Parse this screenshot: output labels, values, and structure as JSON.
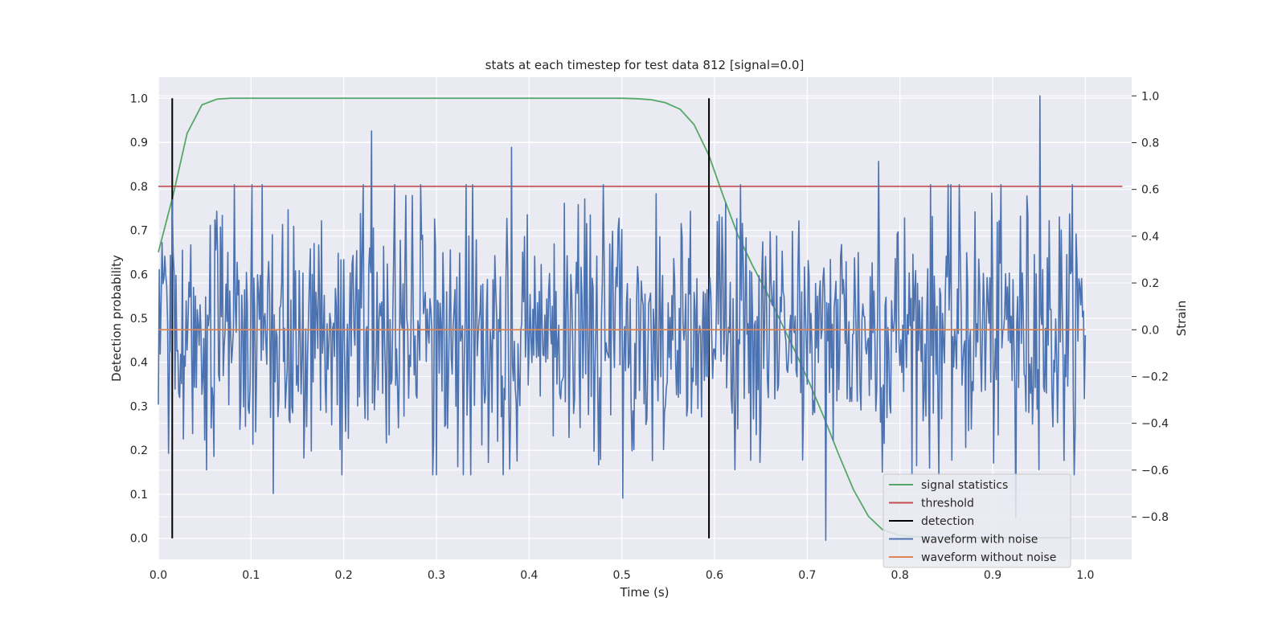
{
  "chart_data": {
    "type": "line",
    "title": "stats at each timestep for test data 812 [signal=0.0]",
    "xlabel": "Time (s)",
    "ylabel": "Detection probability",
    "ylabel_right": "Strain",
    "xlim": [
      0.0,
      1.05
    ],
    "ylim": [
      -0.048,
      1.048
    ],
    "ylim_right": [
      -0.982,
      1.08
    ],
    "x_ticks": [
      "0.0",
      "0.1",
      "0.2",
      "0.3",
      "0.4",
      "0.5",
      "0.6",
      "0.7",
      "0.8",
      "0.9",
      "1.0"
    ],
    "y_ticks": [
      "0.0",
      "0.1",
      "0.2",
      "0.3",
      "0.4",
      "0.5",
      "0.6",
      "0.7",
      "0.8",
      "0.9",
      "1.0"
    ],
    "y_ticks_right": [
      "−0.8",
      "−0.6",
      "−0.4",
      "−0.2",
      "0.0",
      "0.2",
      "0.4",
      "0.6",
      "0.8",
      "1.0"
    ],
    "grid": true,
    "legend_position": "lower-right",
    "series": [
      {
        "name": "signal statistics",
        "axis": "left",
        "color": "#55a868",
        "x": [
          0.0,
          0.016,
          0.031,
          0.047,
          0.063,
          0.078,
          0.1,
          0.2,
          0.3,
          0.4,
          0.5,
          0.516,
          0.531,
          0.547,
          0.563,
          0.578,
          0.594,
          0.609,
          0.625,
          0.641,
          0.656,
          0.672,
          0.688,
          0.703,
          0.719,
          0.734,
          0.75,
          0.766,
          0.781,
          0.797,
          0.813,
          0.828,
          0.844,
          0.859,
          0.875,
          0.891,
          0.906,
          0.922,
          0.938,
          0.953,
          0.969,
          0.984
        ],
        "y": [
          0.65,
          0.78,
          0.92,
          0.985,
          0.998,
          1.0,
          1.0,
          1.0,
          1.0,
          1.0,
          1.0,
          0.999,
          0.997,
          0.99,
          0.975,
          0.94,
          0.87,
          0.78,
          0.69,
          0.62,
          0.56,
          0.49,
          0.42,
          0.35,
          0.27,
          0.19,
          0.11,
          0.05,
          0.02,
          0.008,
          0.004,
          0.003,
          0.002,
          0.002,
          0.001,
          0.001,
          0.001,
          0.001,
          0.001,
          0.001,
          0.001,
          0.001
        ]
      },
      {
        "name": "threshold",
        "axis": "left",
        "color": "#c44e52",
        "x": [
          0.0,
          1.04
        ],
        "y": [
          0.8,
          0.8
        ]
      },
      {
        "name": "detection",
        "axis": "left",
        "color": "#000000",
        "x": [
          0.015,
          0.594
        ],
        "y": [
          1.0,
          1.0
        ]
      },
      {
        "name": "waveform with noise",
        "axis": "right",
        "color": "#4c72b0",
        "y_range": [
          -0.9,
          1.0
        ],
        "noise_std": 0.28,
        "peaks": [
          {
            "x": 0.23,
            "y": 0.85
          },
          {
            "x": 0.381,
            "y": 0.78
          },
          {
            "x": 0.951,
            "y": 1.0
          },
          {
            "x": 0.72,
            "y": -0.9
          },
          {
            "x": 0.124,
            "y": -0.7
          },
          {
            "x": 0.777,
            "y": 0.72
          },
          {
            "x": 0.501,
            "y": -0.72
          },
          {
            "x": 0.925,
            "y": -0.8
          }
        ]
      },
      {
        "name": "waveform without noise",
        "axis": "right",
        "color": "#dd8452",
        "x": [
          0.0,
          1.0
        ],
        "y": [
          0.0,
          0.0
        ]
      }
    ]
  }
}
